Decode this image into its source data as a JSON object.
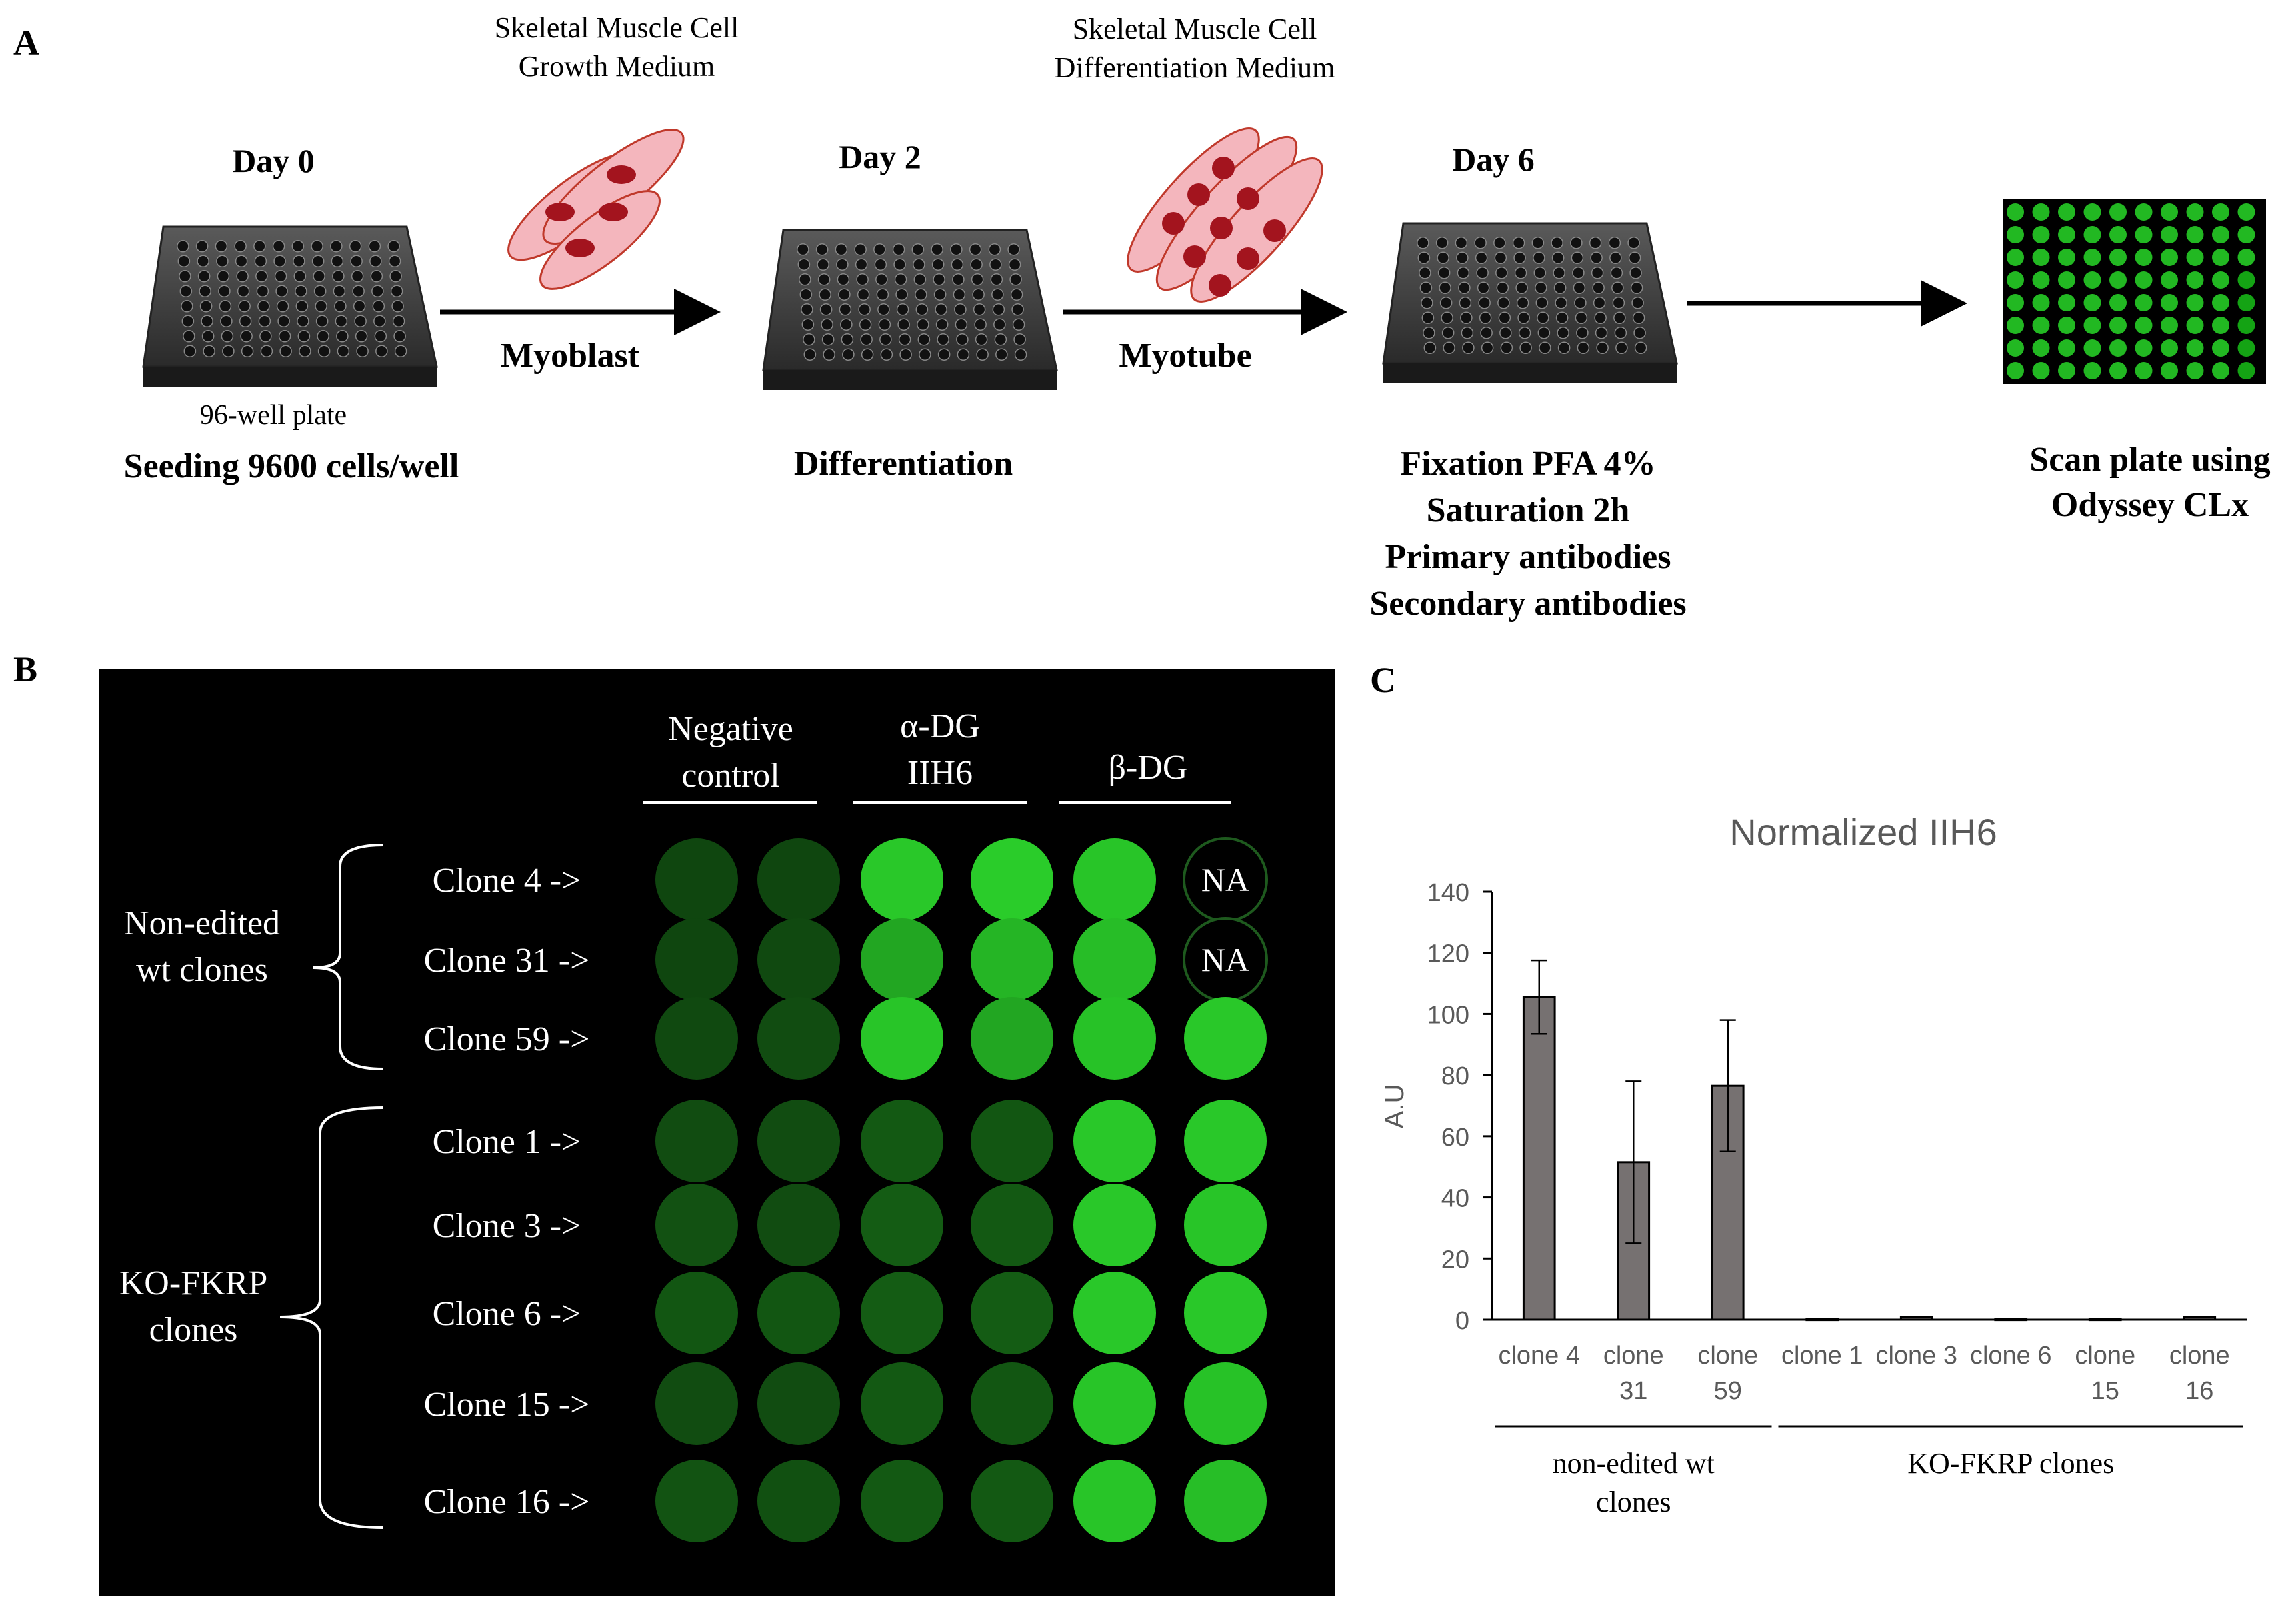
{
  "colors": {
    "cell_fill": "#f4b6bd",
    "cell_stroke": "#c0392b",
    "nucleus": "#a3141e",
    "well_bright": "#2bd42b",
    "well_dim": "#0d3a0d",
    "gel_bg": "#000000",
    "bar_fill": "#767171"
  },
  "panel_a": {
    "letter": "A",
    "day0": {
      "day": "Day 0",
      "plate_label": "96-well plate",
      "caption": "Seeding 9600 cells/well"
    },
    "medium1": {
      "line1": "Skeletal Muscle Cell",
      "line2": "Growth Medium"
    },
    "arrow1_label": "Myoblast",
    "day2": {
      "day": "Day 2",
      "caption": "Differentiation"
    },
    "medium2": {
      "line1": "Skeletal Muscle Cell",
      "line2": "Differentiation Medium"
    },
    "arrow2_label": "Myotube",
    "day6": {
      "day": "Day 6",
      "steps": [
        "Fixation PFA 4%",
        "Saturation 2h",
        "Primary antibodies",
        "Secondary antibodies"
      ]
    },
    "scan": {
      "line1": "Scan plate using",
      "line2": "Odyssey CLx"
    }
  },
  "panel_b": {
    "letter": "B",
    "columns": [
      {
        "line1": "Negative",
        "line2": "control"
      },
      {
        "line1": "α-DG",
        "line2": "IIH6"
      },
      {
        "line1": "β-DG",
        "line2": ""
      }
    ],
    "groups": [
      {
        "line1": "Non-edited",
        "line2": "wt clones"
      },
      {
        "line1": "KO-FKRP",
        "line2": "clones"
      }
    ],
    "rows": [
      {
        "label": "Clone 4 ->",
        "wells": [
          0.08,
          0.08,
          0.92,
          0.95,
          0.9,
          "NA"
        ]
      },
      {
        "label": "Clone 31 ->",
        "wells": [
          0.08,
          0.1,
          0.7,
          0.8,
          0.85,
          "NA"
        ]
      },
      {
        "label": "Clone 59 ->",
        "wells": [
          0.1,
          0.12,
          0.9,
          0.7,
          0.88,
          0.92
        ]
      },
      {
        "label": "Clone 1 ->",
        "wells": [
          0.12,
          0.12,
          0.2,
          0.18,
          0.92,
          0.92
        ]
      },
      {
        "label": "Clone 3 ->",
        "wells": [
          0.15,
          0.12,
          0.22,
          0.2,
          0.92,
          0.9
        ]
      },
      {
        "label": "Clone 6 ->",
        "wells": [
          0.18,
          0.18,
          0.22,
          0.22,
          0.92,
          0.92
        ]
      },
      {
        "label": "Clone 15 ->",
        "wells": [
          0.12,
          0.12,
          0.2,
          0.18,
          0.9,
          0.88
        ]
      },
      {
        "label": "Clone 16 ->",
        "wells": [
          0.16,
          0.14,
          0.2,
          0.2,
          0.9,
          0.86
        ]
      }
    ]
  },
  "panel_c": {
    "letter": "C"
  },
  "chart_data": {
    "type": "bar",
    "title": "Normalized IIH6",
    "ylabel": "A.U",
    "xlabel": "",
    "ylim": [
      0,
      140
    ],
    "yticks": [
      0,
      20,
      40,
      60,
      80,
      100,
      120,
      140
    ],
    "grid": false,
    "categories": [
      "clone 4",
      "clone 31",
      "clone 59",
      "clone 1",
      "clone 3",
      "clone 6",
      "clone 15",
      "clone 16"
    ],
    "category_lines": [
      [
        "clone 4"
      ],
      [
        "clone",
        "31"
      ],
      [
        "clone",
        "59"
      ],
      [
        "clone 1"
      ],
      [
        "clone 3"
      ],
      [
        "clone 6"
      ],
      [
        "clone",
        "15"
      ],
      [
        "clone",
        "16"
      ]
    ],
    "values": [
      105.5,
      51.5,
      76.5,
      0.3,
      0.8,
      0.3,
      0.3,
      0.8
    ],
    "errors": [
      12,
      26.5,
      21.5,
      0,
      0,
      0,
      0,
      0
    ],
    "groups": [
      {
        "lines": [
          "non-edited wt",
          "clones"
        ],
        "span": [
          0,
          2
        ]
      },
      {
        "lines": [
          "KO-FKRP clones"
        ],
        "span": [
          3,
          7
        ]
      }
    ]
  }
}
